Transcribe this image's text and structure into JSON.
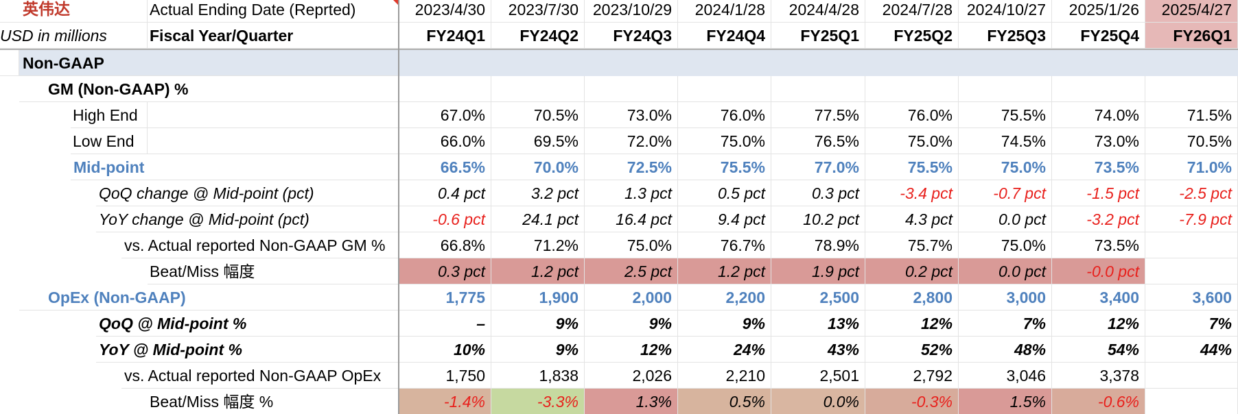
{
  "header": {
    "brand": "英伟达",
    "date_label": "Actual Ending Date (Reprted)",
    "unit_label": "USD in millions",
    "fiscal_label": "Fiscal Year/Quarter",
    "dates": [
      "2023/4/30",
      "2023/7/30",
      "2023/10/29",
      "2024/1/28",
      "2024/4/28",
      "2024/7/28",
      "2024/10/27",
      "2025/1/26",
      "2025/4/27"
    ],
    "quarters": [
      "FY24Q1",
      "FY24Q2",
      "FY24Q3",
      "FY24Q4",
      "FY25Q1",
      "FY25Q2",
      "FY25Q3",
      "FY25Q4",
      "FY26Q1"
    ]
  },
  "section": {
    "label": "Non-GAAP"
  },
  "rows": [
    {
      "label": "GM (Non-GAAP) %",
      "values": [
        "",
        "",
        "",
        "",
        "",
        "",
        "",
        "",
        ""
      ]
    },
    {
      "label": "High End",
      "values": [
        "67.0%",
        "70.5%",
        "73.0%",
        "76.0%",
        "77.5%",
        "76.0%",
        "75.5%",
        "74.0%",
        "71.5%"
      ]
    },
    {
      "label": "Low End",
      "values": [
        "66.0%",
        "69.5%",
        "72.0%",
        "75.0%",
        "76.5%",
        "75.0%",
        "74.5%",
        "73.0%",
        "70.5%"
      ]
    },
    {
      "label": "Mid-point",
      "values": [
        "66.5%",
        "70.0%",
        "72.5%",
        "75.5%",
        "77.0%",
        "75.5%",
        "75.0%",
        "73.5%",
        "71.0%"
      ]
    },
    {
      "label": "QoQ change @ Mid-point (pct)",
      "values": [
        "0.4 pct",
        "3.2 pct",
        "1.3 pct",
        "0.5 pct",
        "0.3 pct",
        "-3.4 pct",
        "-0.7 pct",
        "-1.5 pct",
        "-2.5 pct"
      ]
    },
    {
      "label": "YoY change @ Mid-point (pct)",
      "values": [
        "-0.6 pct",
        "24.1 pct",
        "16.4 pct",
        "9.4 pct",
        "10.2 pct",
        "4.3 pct",
        "0.0 pct",
        "-3.2 pct",
        "-7.9 pct"
      ]
    },
    {
      "label": "vs. Actual reported Non-GAAP GM %",
      "values": [
        "66.8%",
        "71.2%",
        "75.0%",
        "76.7%",
        "78.9%",
        "75.7%",
        "75.0%",
        "73.5%",
        ""
      ]
    },
    {
      "label": "Beat/Miss 幅度",
      "values": [
        "0.3 pct",
        "1.2 pct",
        "2.5 pct",
        "1.2 pct",
        "1.9 pct",
        "0.2 pct",
        "0.0 pct",
        "-0.0 pct",
        ""
      ]
    },
    {
      "label": "OpEx (Non-GAAP)",
      "values": [
        "1,775",
        "1,900",
        "2,000",
        "2,200",
        "2,500",
        "2,800",
        "3,000",
        "3,400",
        "3,600"
      ]
    },
    {
      "label": "QoQ @ Mid-point %",
      "values": [
        "–",
        "9%",
        "9%",
        "9%",
        "13%",
        "12%",
        "7%",
        "12%",
        "7%"
      ]
    },
    {
      "label": "YoY @ Mid-point %",
      "values": [
        "10%",
        "9%",
        "12%",
        "24%",
        "43%",
        "52%",
        "48%",
        "54%",
        "44%"
      ]
    },
    {
      "label": "vs. Actual reported Non-GAAP OpEx",
      "values": [
        "1,750",
        "1,838",
        "2,026",
        "2,210",
        "2,501",
        "2,792",
        "3,046",
        "3,378",
        ""
      ]
    },
    {
      "label": "Beat/Miss 幅度 %",
      "values": [
        "-1.4%",
        "-3.3%",
        "1.3%",
        "0.5%",
        "0.0%",
        "-0.3%",
        "1.5%",
        "-0.6%",
        ""
      ]
    }
  ],
  "colors": {
    "blue_text": "#4f81bd",
    "red_text": "#e8201c",
    "section_band": "#dfe6f0",
    "highlight_header": "#e6b8b7",
    "opex_beat_fills": [
      "#d7b49e",
      "#c6d9a0",
      "#d99a97",
      "#d7b49e",
      "#d9b6a1",
      "#d7ab9b",
      "#d99a97",
      "#d8ab9b"
    ]
  }
}
